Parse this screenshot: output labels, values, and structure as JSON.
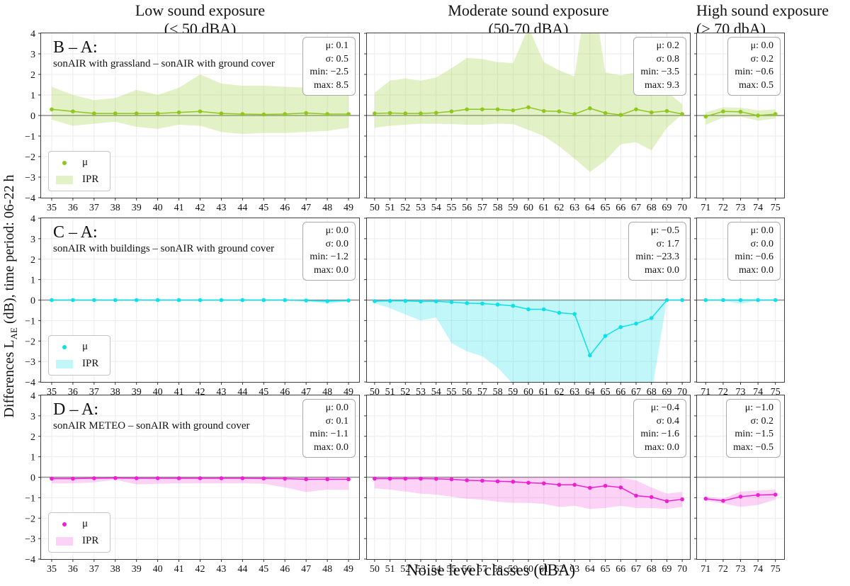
{
  "figure": {
    "xlabel": "Noise level classes (dBA)",
    "ylabel": {
      "pre": "Differences L",
      "sub": "AE",
      "post": " (dB), time period: 06-22 h"
    },
    "columns": [
      {
        "id": "low",
        "title_line1": "Low sound exposure",
        "title_line2": "(< 50 dBA)"
      },
      {
        "id": "moderate",
        "title_line1": "Moderate sound exposure",
        "title_line2": "(50-70 dBA)"
      },
      {
        "id": "high",
        "title_line1": "High sound exposure",
        "title_line2": "(> 70 dbA)"
      }
    ],
    "rows": [
      {
        "id": "B-A",
        "label": "B – A:",
        "subtitle": "sonAIR with grassland – sonAIR with ground cover",
        "line_color": "#8ec71d",
        "band_color": "rgba(154,205,50,0.28)"
      },
      {
        "id": "C-A",
        "label": "C – A:",
        "subtitle": "sonAIR with buildings – sonAIR with ground cover",
        "line_color": "#0de0e8",
        "band_color": "rgba(0,220,230,0.24)"
      },
      {
        "id": "D-A",
        "label": "D – A:",
        "subtitle": "sonAIR METEO – sonAIR with ground cover",
        "line_color": "#ee1fd0",
        "band_color": "rgba(240,30,210,0.2)"
      }
    ]
  },
  "legend": {
    "mu": "μ",
    "ipr": "IPR"
  },
  "stats_labels": {
    "mu": "μ:",
    "sigma": "σ:",
    "min": "min:",
    "max": "max:"
  },
  "chart_data": [
    {
      "type": "line",
      "id": "B-A-low",
      "row": 0,
      "col": 0,
      "ylim": [
        -4,
        4
      ],
      "x": [
        35,
        36,
        37,
        38,
        39,
        40,
        41,
        42,
        43,
        44,
        45,
        46,
        47,
        48,
        49
      ],
      "mean": [
        0.3,
        0.2,
        0.1,
        0.1,
        0.1,
        0.1,
        0.15,
        0.2,
        0.1,
        0.07,
        0.05,
        0.07,
        0.12,
        0.07,
        0.07
      ],
      "band_upper": [
        1.4,
        1.0,
        0.75,
        0.85,
        1.25,
        1.0,
        1.35,
        2.0,
        1.55,
        1.45,
        1.45,
        1.4,
        1.35,
        1.25,
        1.1
      ],
      "band_lower": [
        -0.2,
        -0.5,
        -0.4,
        -0.3,
        -0.55,
        -0.65,
        -0.45,
        -0.5,
        -0.8,
        -0.9,
        -0.85,
        -0.85,
        -0.8,
        -0.75,
        -0.6
      ],
      "stats": {
        "mu": "0.1",
        "sigma": "0.5",
        "min": "−2.5",
        "max": "8.5"
      }
    },
    {
      "type": "line",
      "id": "B-A-moderate",
      "row": 0,
      "col": 1,
      "ylim": [
        -4,
        4
      ],
      "x": [
        50,
        51,
        52,
        53,
        54,
        55,
        56,
        57,
        58,
        59,
        60,
        61,
        62,
        63,
        64,
        65,
        66,
        67,
        68,
        69,
        70
      ],
      "mean": [
        0.1,
        0.12,
        0.1,
        0.1,
        0.13,
        0.2,
        0.3,
        0.3,
        0.3,
        0.25,
        0.4,
        0.22,
        0.2,
        0.07,
        0.35,
        0.12,
        0.03,
        0.3,
        0.15,
        0.22,
        0.07
      ],
      "band_upper": [
        1.1,
        1.7,
        1.8,
        1.7,
        1.85,
        2.3,
        2.8,
        2.75,
        2.6,
        2.55,
        4.3,
        2.6,
        2.2,
        1.9,
        7.0,
        2.1,
        1.95,
        2.1,
        1.6,
        1.15,
        0.55
      ],
      "band_lower": [
        -0.6,
        -0.5,
        -0.45,
        -0.4,
        -0.4,
        -0.42,
        -0.45,
        -0.45,
        -0.4,
        -0.42,
        -0.7,
        -1.0,
        -1.5,
        -2.1,
        -2.75,
        -2.2,
        -1.4,
        -1.3,
        -1.7,
        -0.6,
        0.05
      ],
      "stats": {
        "mu": "0.2",
        "sigma": "0.8",
        "min": "−3.5",
        "max": "9.3"
      }
    },
    {
      "type": "line",
      "id": "B-A-high",
      "row": 0,
      "col": 2,
      "ylim": [
        -4,
        4
      ],
      "x": [
        71,
        72,
        73,
        74,
        75
      ],
      "mean": [
        -0.05,
        0.2,
        0.18,
        0.0,
        0.07
      ],
      "band_upper": [
        0.15,
        0.4,
        0.38,
        0.25,
        0.3
      ],
      "band_lower": [
        -0.45,
        -0.1,
        -0.05,
        -0.25,
        -0.15
      ],
      "stats": {
        "mu": "0.0",
        "sigma": "0.2",
        "min": "−0.6",
        "max": "0.5"
      }
    },
    {
      "type": "line",
      "id": "C-A-low",
      "row": 1,
      "col": 0,
      "ylim": [
        -4,
        4
      ],
      "x": [
        35,
        36,
        37,
        38,
        39,
        40,
        41,
        42,
        43,
        44,
        45,
        46,
        47,
        48,
        49
      ],
      "mean": [
        0,
        0,
        0,
        0,
        0,
        0,
        0,
        0,
        0,
        0,
        0,
        0,
        -0.02,
        -0.05,
        -0.02
      ],
      "band_upper": [
        0,
        0,
        0,
        0,
        0,
        0,
        0,
        0,
        0,
        0,
        0,
        0,
        0,
        0,
        0
      ],
      "band_lower": [
        0,
        0,
        0,
        0,
        0,
        0,
        0,
        0,
        0,
        0,
        0,
        0,
        -0.05,
        -0.18,
        -0.06
      ],
      "stats": {
        "mu": "0.0",
        "sigma": "0.0",
        "min": "−1.2",
        "max": "0.0"
      }
    },
    {
      "type": "line",
      "id": "C-A-moderate",
      "row": 1,
      "col": 1,
      "ylim": [
        -4,
        4
      ],
      "x": [
        50,
        51,
        52,
        53,
        54,
        55,
        56,
        57,
        58,
        59,
        60,
        61,
        62,
        63,
        64,
        65,
        66,
        67,
        68,
        69,
        70
      ],
      "mean": [
        -0.05,
        -0.04,
        -0.04,
        -0.07,
        -0.06,
        -0.1,
        -0.15,
        -0.17,
        -0.22,
        -0.28,
        -0.45,
        -0.45,
        -0.62,
        -0.68,
        -2.7,
        -1.75,
        -1.32,
        -1.15,
        -0.88,
        0,
        0
      ],
      "band_upper": [
        0,
        0,
        0,
        0,
        0,
        0,
        0,
        0,
        0,
        0,
        0,
        0,
        0,
        0,
        0,
        0,
        0,
        0,
        0,
        0,
        0
      ],
      "band_lower": [
        -0.15,
        -0.4,
        -0.7,
        -1.0,
        -0.85,
        -2.1,
        -2.5,
        -2.75,
        -3.3,
        -4.1,
        -4.6,
        -4.6,
        -4.6,
        -4.6,
        -4.6,
        -4.6,
        -4.6,
        -4.6,
        -4.6,
        0,
        0
      ],
      "stats": {
        "mu": "−0.5",
        "sigma": "1.7",
        "min": "−23.3",
        "max": "0.0"
      }
    },
    {
      "type": "line",
      "id": "C-A-high",
      "row": 1,
      "col": 2,
      "ylim": [
        -4,
        4
      ],
      "x": [
        71,
        72,
        73,
        74,
        75
      ],
      "mean": [
        0,
        0,
        0,
        0,
        0
      ],
      "band_upper": [
        0,
        0,
        0,
        0,
        0
      ],
      "band_lower": [
        0,
        -0.03,
        -0.18,
        -0.03,
        0
      ],
      "stats": {
        "mu": "0.0",
        "sigma": "0.0",
        "min": "−0.6",
        "max": "0.0"
      }
    },
    {
      "type": "line",
      "id": "D-A-low",
      "row": 2,
      "col": 0,
      "ylim": [
        -4,
        4
      ],
      "x": [
        35,
        36,
        37,
        38,
        39,
        40,
        41,
        42,
        43,
        44,
        45,
        46,
        47,
        48,
        49
      ],
      "mean": [
        -0.07,
        -0.07,
        -0.05,
        -0.04,
        -0.05,
        -0.05,
        -0.05,
        -0.05,
        -0.05,
        -0.05,
        -0.06,
        -0.07,
        -0.1,
        -0.1,
        -0.1
      ],
      "band_upper": [
        0,
        0,
        0,
        0,
        0,
        0,
        0,
        0,
        0,
        0,
        0,
        0,
        0,
        0,
        0
      ],
      "band_lower": [
        -0.3,
        -0.3,
        -0.25,
        -0.12,
        -0.35,
        -0.32,
        -0.3,
        -0.3,
        -0.3,
        -0.3,
        -0.32,
        -0.5,
        -0.72,
        -0.6,
        -0.62
      ],
      "stats": {
        "mu": "0.0",
        "sigma": "0.1",
        "min": "−1.1",
        "max": "0.0"
      }
    },
    {
      "type": "line",
      "id": "D-A-moderate",
      "row": 2,
      "col": 1,
      "ylim": [
        -4,
        4
      ],
      "x": [
        50,
        51,
        52,
        53,
        54,
        55,
        56,
        57,
        58,
        59,
        60,
        61,
        62,
        63,
        64,
        65,
        66,
        67,
        68,
        69,
        70
      ],
      "mean": [
        -0.07,
        -0.07,
        -0.07,
        -0.07,
        -0.08,
        -0.1,
        -0.15,
        -0.17,
        -0.2,
        -0.22,
        -0.27,
        -0.3,
        -0.37,
        -0.37,
        -0.52,
        -0.42,
        -0.5,
        -0.9,
        -0.97,
        -1.17,
        -1.08
      ],
      "band_upper": [
        0,
        0,
        0,
        0,
        0,
        0,
        0,
        0,
        0,
        0,
        0,
        0,
        0,
        0,
        0,
        0,
        -0.02,
        -0.15,
        -0.5,
        -0.8,
        -0.72
      ],
      "band_lower": [
        -0.55,
        -0.6,
        -0.7,
        -0.8,
        -0.85,
        -0.95,
        -1.05,
        -1.1,
        -1.2,
        -1.25,
        -1.25,
        -1.3,
        -1.45,
        -1.4,
        -1.55,
        -1.5,
        -1.4,
        -1.5,
        -1.5,
        -1.55,
        -1.45
      ],
      "stats": {
        "mu": "−0.4",
        "sigma": "0.4",
        "min": "−1.6",
        "max": "0.0"
      }
    },
    {
      "type": "line",
      "id": "D-A-high",
      "row": 2,
      "col": 2,
      "ylim": [
        -4,
        4
      ],
      "x": [
        71,
        72,
        73,
        74,
        75
      ],
      "mean": [
        -1.05,
        -1.15,
        -0.95,
        -0.87,
        -0.85
      ],
      "band_upper": [
        -0.95,
        -1.05,
        -0.7,
        -0.65,
        -0.6
      ],
      "band_lower": [
        -1.15,
        -1.28,
        -1.45,
        -1.35,
        -1.1
      ],
      "stats": {
        "mu": "−1.0",
        "sigma": "0.2",
        "min": "−1.5",
        "max": "−0.5"
      }
    }
  ]
}
